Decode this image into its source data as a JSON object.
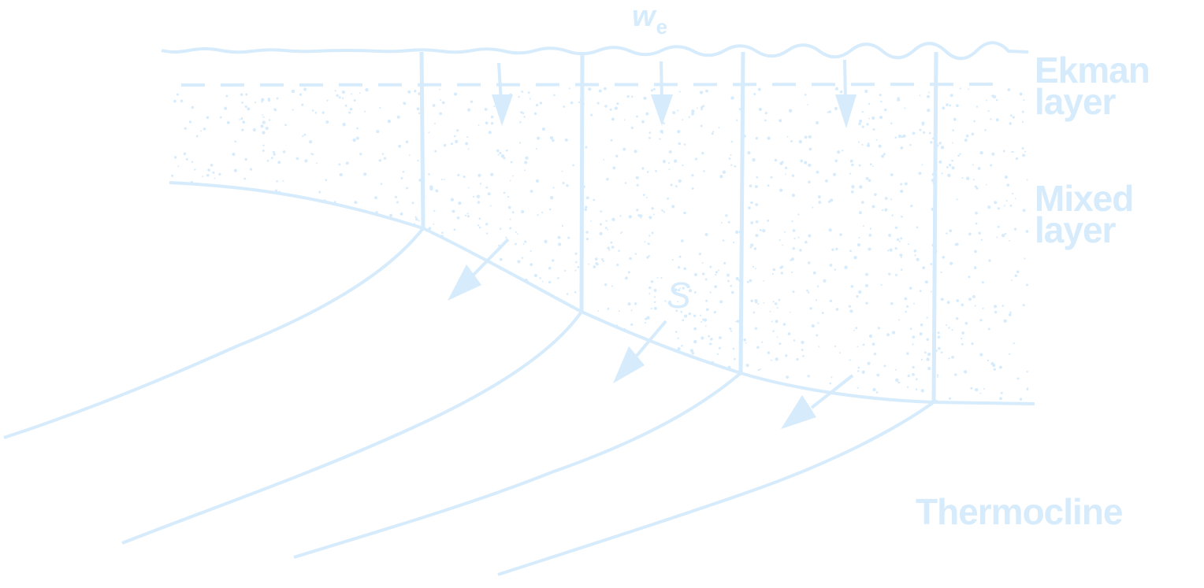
{
  "colors": {
    "ink": "#d6ebfb",
    "background": "#ffffff"
  },
  "labels": {
    "ekman_line1": "Ekman",
    "ekman_line2": "layer",
    "mixed_line1": "Mixed",
    "mixed_line2": "layer",
    "thermocline": "Thermocline",
    "we_main": "w",
    "we_sub": "e",
    "s": "S"
  }
}
